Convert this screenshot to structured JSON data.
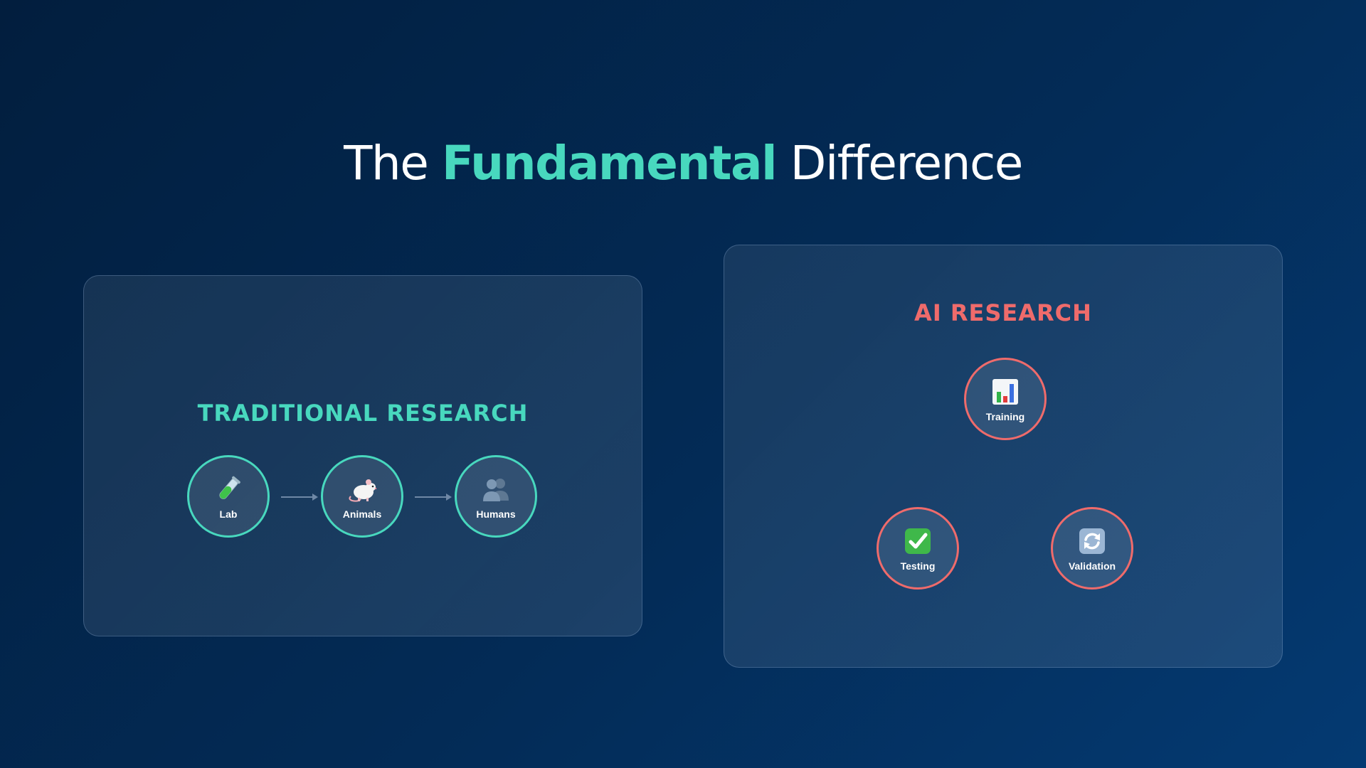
{
  "title": {
    "prefix": "The",
    "highlight": "Fundamental",
    "suffix": "Difference"
  },
  "traditional": {
    "heading": "TRADITIONAL RESEARCH",
    "nodes": [
      {
        "label": "Lab",
        "icon": "test-tube-icon"
      },
      {
        "label": "Animals",
        "icon": "rat-icon"
      },
      {
        "label": "Humans",
        "icon": "people-icon"
      }
    ]
  },
  "ai": {
    "heading": "AI RESEARCH",
    "nodes": [
      {
        "label": "Training",
        "icon": "bar-chart-icon"
      },
      {
        "label": "Testing",
        "icon": "check-mark-icon"
      },
      {
        "label": "Validation",
        "icon": "refresh-icon"
      }
    ]
  },
  "colors": {
    "accent_teal": "#48d8be",
    "accent_red": "#ef6b6b",
    "background": "#032b56"
  }
}
